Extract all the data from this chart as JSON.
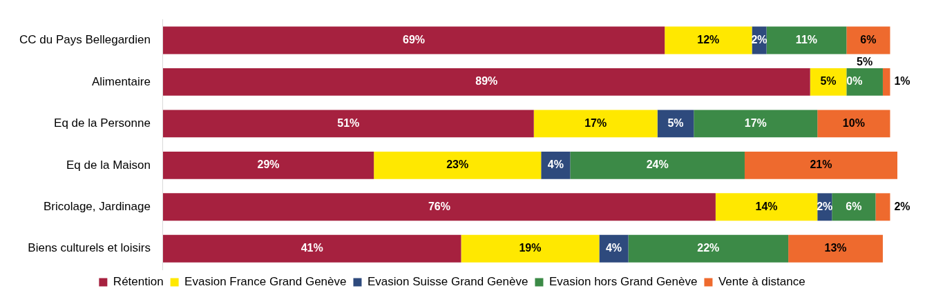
{
  "chart_data": {
    "type": "bar",
    "orientation": "horizontal",
    "stacked": true,
    "legend": "bottom",
    "grid": false,
    "categories": [
      "CC du Pays Bellegardien",
      "Alimentaire",
      "Eq de la Personne",
      "Eq de la Maison",
      "Bricolage, Jardinage",
      "Biens culturels et loisirs"
    ],
    "series": [
      {
        "name": "Rétention",
        "color": "#a6213f",
        "values": [
          69,
          89,
          51,
          29,
          76,
          41
        ],
        "value_labels": [
          "69%",
          "89%",
          "51%",
          "29%",
          "76%",
          "41%"
        ]
      },
      {
        "name": "Evasion France Grand Genève",
        "color": "#ffe800",
        "values": [
          12,
          5,
          17,
          23,
          14,
          19
        ],
        "value_labels": [
          "12%",
          "5%",
          "17%",
          "23%",
          "14%",
          "19%"
        ]
      },
      {
        "name": "Evasion Suisse Grand Genève",
        "color": "#2e4a7d",
        "values": [
          2,
          0,
          5,
          4,
          2,
          4
        ],
        "value_labels": [
          "2%",
          "0%",
          "5%",
          "4%",
          "2%",
          "4%"
        ]
      },
      {
        "name": "Evasion hors Grand Genève",
        "color": "#3c8a47",
        "values": [
          11,
          5,
          17,
          24,
          6,
          22
        ],
        "value_labels": [
          "11%",
          "5%",
          "17%",
          "24%",
          "6%",
          "22%"
        ]
      },
      {
        "name": "Vente à distance",
        "color": "#ee6a2e",
        "values": [
          6,
          1,
          10,
          21,
          2,
          13
        ],
        "value_labels": [
          "6%",
          "1%",
          "10%",
          "21%",
          "2%",
          "13%"
        ]
      }
    ]
  }
}
